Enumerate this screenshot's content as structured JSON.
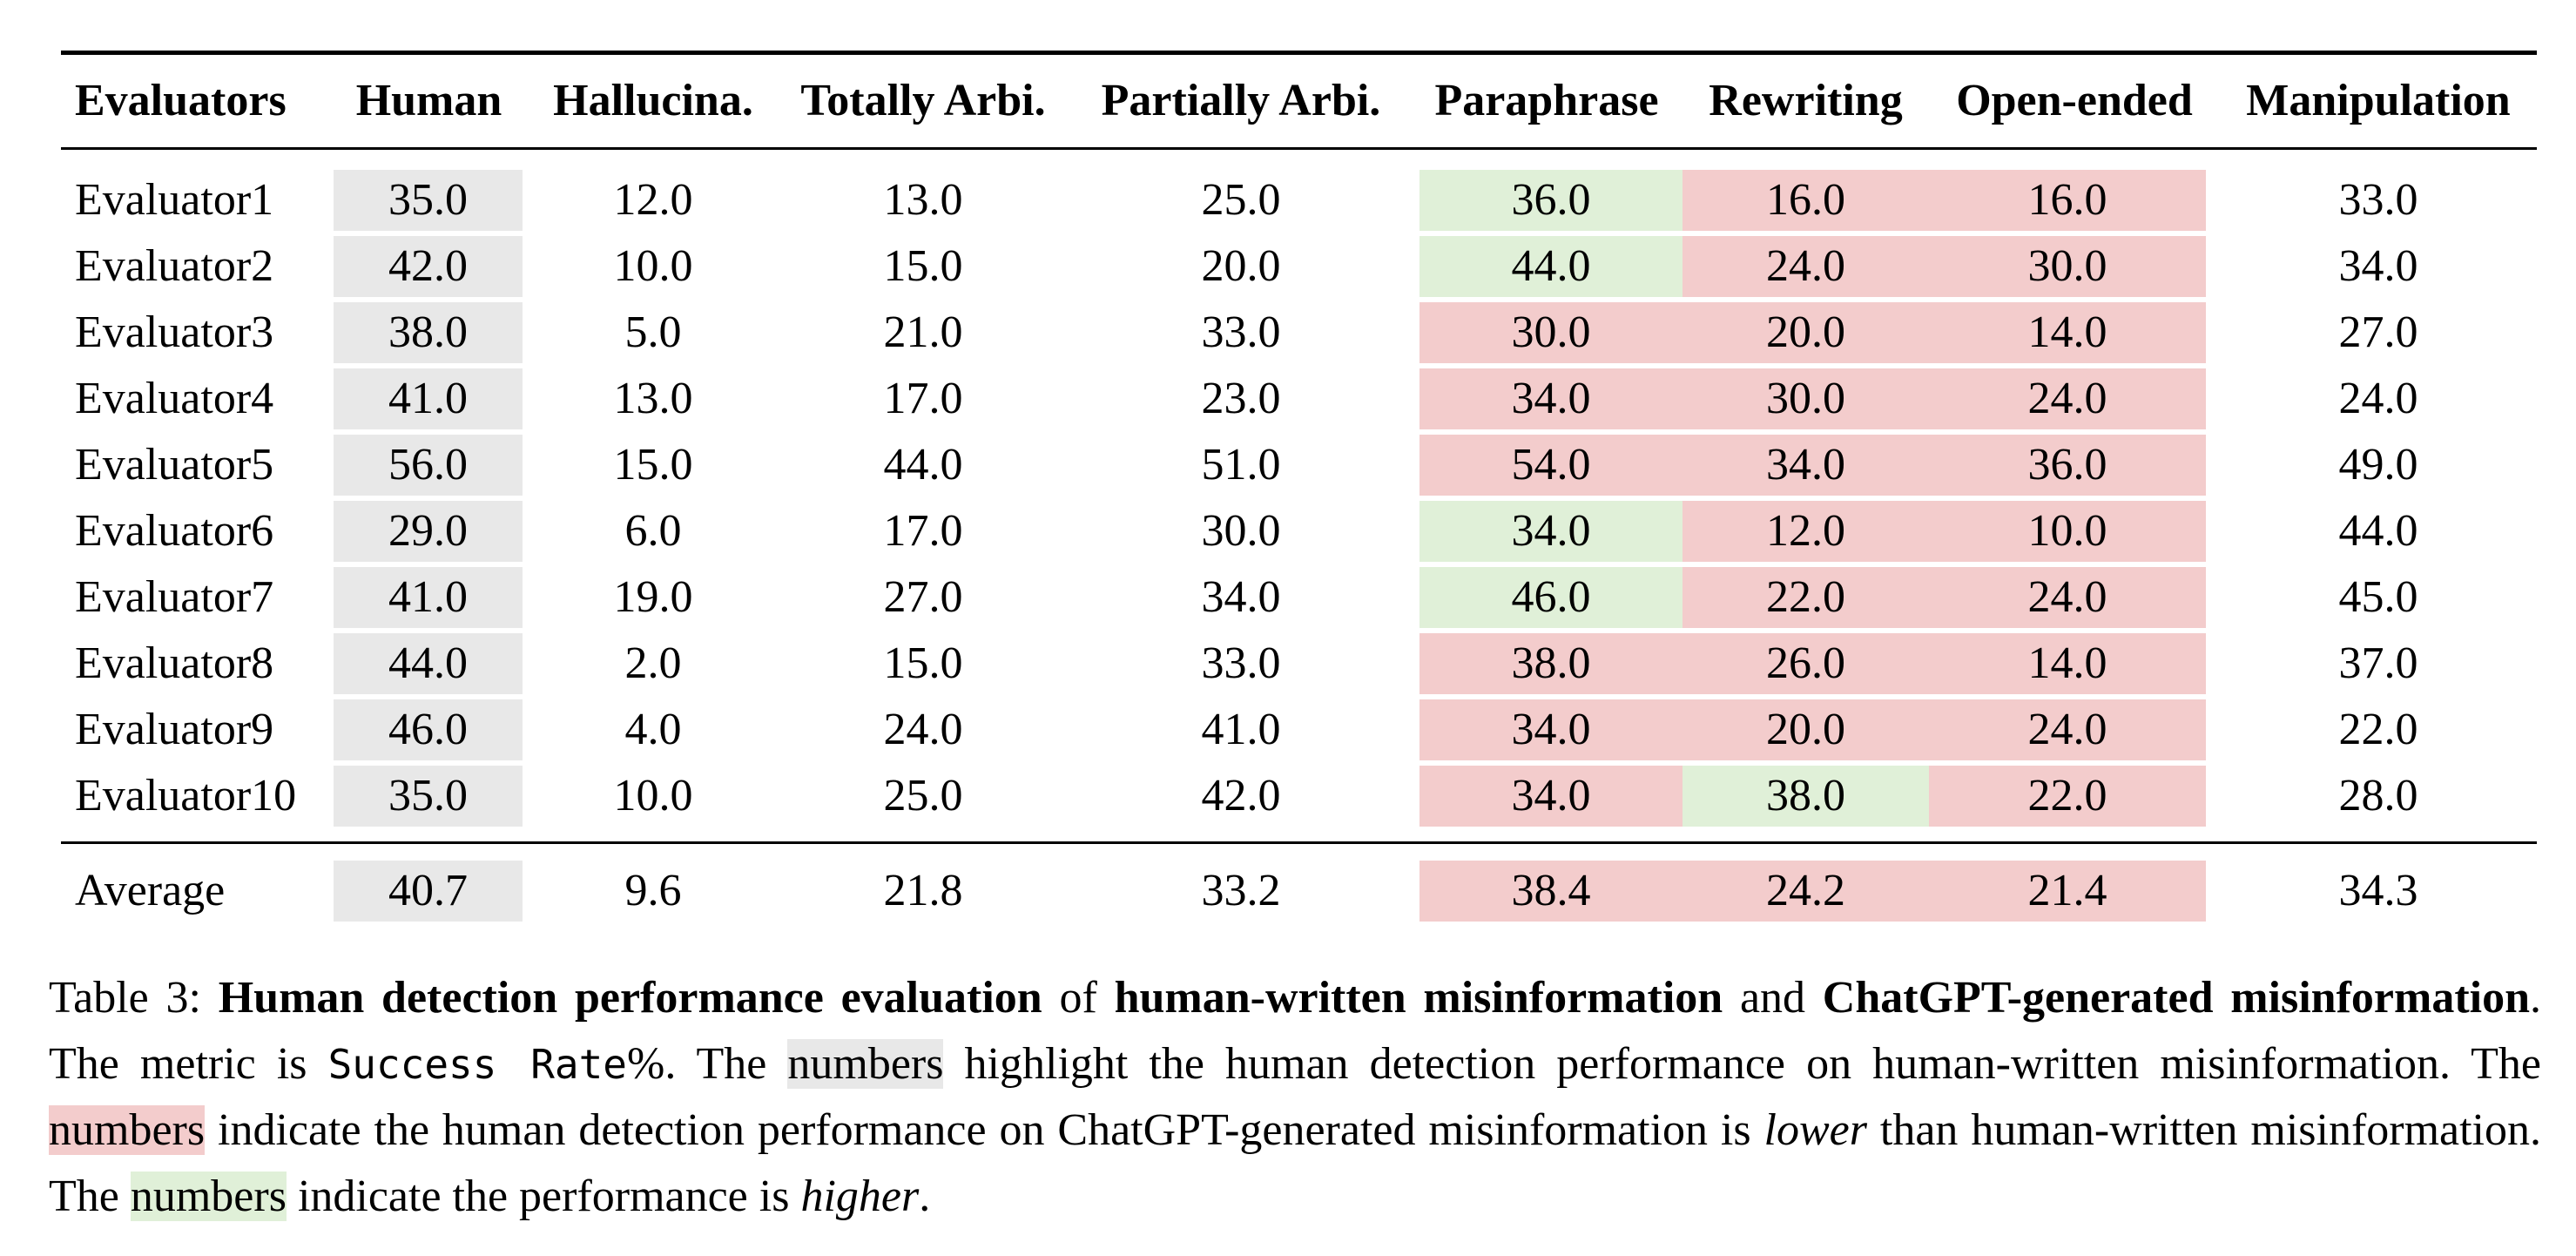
{
  "table": {
    "headers": [
      "Evaluators",
      "Human",
      "Hallucina.",
      "Totally Arbi.",
      "Partially Arbi.",
      "Paraphrase",
      "Rewriting",
      "Open-ended",
      "Manipulation"
    ],
    "rows": [
      {
        "name": "Evaluator1",
        "values": [
          "35.0",
          "12.0",
          "13.0",
          "25.0",
          "36.0",
          "16.0",
          "16.0",
          "33.0"
        ],
        "hl": [
          "gray",
          "",
          "",
          "",
          "green",
          "red",
          "red",
          ""
        ]
      },
      {
        "name": "Evaluator2",
        "values": [
          "42.0",
          "10.0",
          "15.0",
          "20.0",
          "44.0",
          "24.0",
          "30.0",
          "34.0"
        ],
        "hl": [
          "gray",
          "",
          "",
          "",
          "green",
          "red",
          "red",
          ""
        ]
      },
      {
        "name": "Evaluator3",
        "values": [
          "38.0",
          "5.0",
          "21.0",
          "33.0",
          "30.0",
          "20.0",
          "14.0",
          "27.0"
        ],
        "hl": [
          "gray",
          "",
          "",
          "",
          "red",
          "red",
          "red",
          ""
        ]
      },
      {
        "name": "Evaluator4",
        "values": [
          "41.0",
          "13.0",
          "17.0",
          "23.0",
          "34.0",
          "30.0",
          "24.0",
          "24.0"
        ],
        "hl": [
          "gray",
          "",
          "",
          "",
          "red",
          "red",
          "red",
          ""
        ]
      },
      {
        "name": "Evaluator5",
        "values": [
          "56.0",
          "15.0",
          "44.0",
          "51.0",
          "54.0",
          "34.0",
          "36.0",
          "49.0"
        ],
        "hl": [
          "gray",
          "",
          "",
          "",
          "red",
          "red",
          "red",
          ""
        ]
      },
      {
        "name": "Evaluator6",
        "values": [
          "29.0",
          "6.0",
          "17.0",
          "30.0",
          "34.0",
          "12.0",
          "10.0",
          "44.0"
        ],
        "hl": [
          "gray",
          "",
          "",
          "",
          "green",
          "red",
          "red",
          ""
        ]
      },
      {
        "name": "Evaluator7",
        "values": [
          "41.0",
          "19.0",
          "27.0",
          "34.0",
          "46.0",
          "22.0",
          "24.0",
          "45.0"
        ],
        "hl": [
          "gray",
          "",
          "",
          "",
          "green",
          "red",
          "red",
          ""
        ]
      },
      {
        "name": "Evaluator8",
        "values": [
          "44.0",
          "2.0",
          "15.0",
          "33.0",
          "38.0",
          "26.0",
          "14.0",
          "37.0"
        ],
        "hl": [
          "gray",
          "",
          "",
          "",
          "red",
          "red",
          "red",
          ""
        ]
      },
      {
        "name": "Evaluator9",
        "values": [
          "46.0",
          "4.0",
          "24.0",
          "41.0",
          "34.0",
          "20.0",
          "24.0",
          "22.0"
        ],
        "hl": [
          "gray",
          "",
          "",
          "",
          "red",
          "red",
          "red",
          ""
        ]
      },
      {
        "name": "Evaluator10",
        "values": [
          "35.0",
          "10.0",
          "25.0",
          "42.0",
          "34.0",
          "38.0",
          "22.0",
          "28.0"
        ],
        "hl": [
          "gray",
          "",
          "",
          "",
          "red",
          "green",
          "red",
          ""
        ]
      }
    ],
    "average": {
      "name": "Average",
      "values": [
        "40.7",
        "9.6",
        "21.8",
        "33.2",
        "38.4",
        "24.2",
        "21.4",
        "34.3"
      ],
      "hl": [
        "gray",
        "",
        "",
        "",
        "red",
        "red",
        "red",
        ""
      ]
    }
  },
  "caption": {
    "label": "Table 3: ",
    "b1": "Human detection performance evaluation",
    "t1": " of ",
    "b2": "human-written misinformation",
    "t2": " and ",
    "b3": "ChatGPT-generated misinformation",
    "t3": ". The metric is ",
    "metric": "Success Rate",
    "t4": "%. The ",
    "hl1": "numbers",
    "t5": " highlight the human detection performance on human-written misinformation. The ",
    "hl2": "numbers",
    "t6": " indicate the human detection performance on ChatGPT-generated misinformation is ",
    "i1": "lower",
    "t7": " than human-written misinformation. The ",
    "hl3": "numbers",
    "t8": " indicate the performance is ",
    "i2": "higher",
    "t9": "."
  },
  "colors": {
    "gray": "#e8e8e8",
    "red": "#f3cccc",
    "green": "#e0f0d8"
  }
}
